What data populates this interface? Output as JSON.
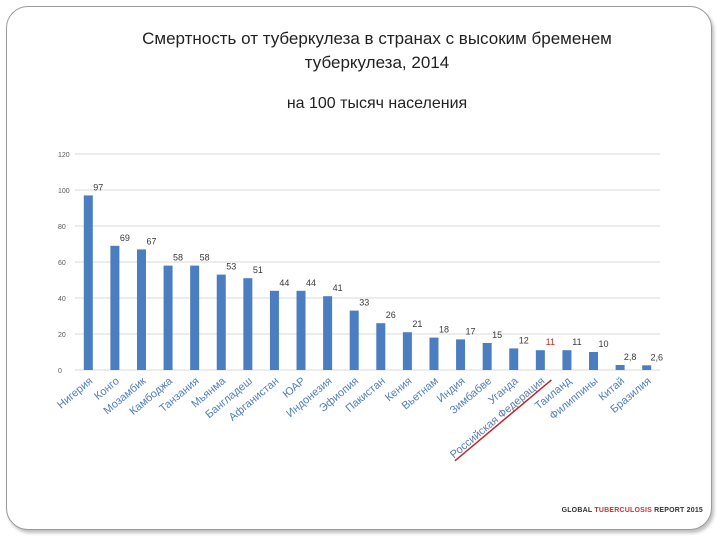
{
  "slide": {
    "title": "Смертность от туберкулеза в странах с высоким бременем туберкулеза, 2014",
    "subtitle": "на 100 тысяч населения",
    "source_prefix": "GLOBAL ",
    "source_accent": "TUBERCULOSIS",
    "source_suffix": " REPORT 2015"
  },
  "chart_data": {
    "type": "bar",
    "title": "Смертность от туберкулеза в странах с высоким бременем туберкулеза, 2014",
    "subtitle": "на 100 тысяч населения",
    "ylim": [
      0,
      120
    ],
    "yticks": [
      0,
      20,
      40,
      60,
      80,
      100,
      120
    ],
    "ytick_labels": [
      "0",
      "20",
      "40",
      "60",
      "80",
      "100",
      "120"
    ],
    "grid": true,
    "bar_color": "#4a7ec0",
    "highlight_color": "#c0282a",
    "highlight_category": "Российская Федерация",
    "categories": [
      "Нигерия",
      "Конго",
      "Мозамбик",
      "Камбоджа",
      "Танзания",
      "Мьянма",
      "Бангладеш",
      "Афганистан",
      "ЮАР",
      "Индонезия",
      "Эфиопия",
      "Пакистан",
      "Кения",
      "Вьетнам",
      "Индия",
      "Зимбабве",
      "Уганда",
      "Российская Федерация",
      "Таиланд",
      "Филиппины",
      "Китай",
      "Бразилия"
    ],
    "values": [
      97,
      69,
      67,
      58,
      58,
      53,
      51,
      44,
      44,
      41,
      33,
      26,
      21,
      18,
      17,
      15,
      12,
      11,
      11,
      10,
      2.8,
      2.6
    ],
    "data_labels": [
      "97",
      "69",
      "67",
      "58",
      "58",
      "53",
      "51",
      "44",
      "44",
      "41",
      "33",
      "26",
      "21",
      "18",
      "17",
      "15",
      "12",
      "11",
      "11",
      "10",
      "2,8",
      "2,6"
    ]
  }
}
